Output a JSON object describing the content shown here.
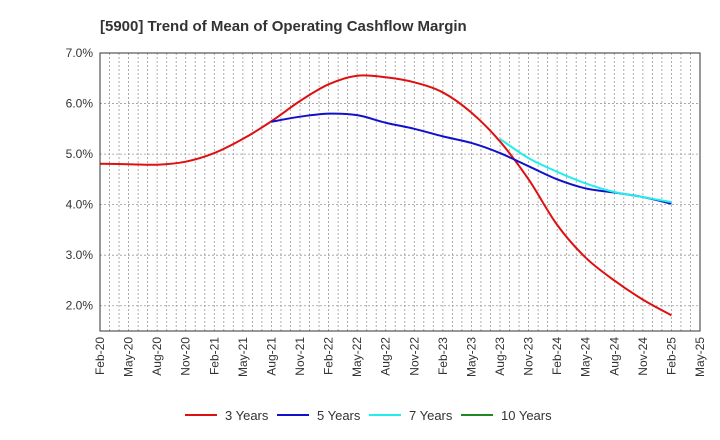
{
  "chart_data": {
    "type": "line",
    "title": "[5900]  Trend of Mean of Operating Cashflow Margin",
    "xlabel": "",
    "ylabel": "",
    "ylim": [
      1.5,
      7.0
    ],
    "y_ticks": [
      "2.0%",
      "3.0%",
      "4.0%",
      "5.0%",
      "6.0%",
      "7.0%"
    ],
    "x_ticks": [
      "Feb-20",
      "May-20",
      "Aug-20",
      "Nov-20",
      "Feb-21",
      "May-21",
      "Aug-21",
      "Nov-21",
      "Feb-22",
      "May-22",
      "Aug-22",
      "Nov-22",
      "Feb-23",
      "May-23",
      "Aug-23",
      "Nov-23",
      "Feb-24",
      "May-24",
      "Aug-24",
      "Nov-24",
      "Feb-25",
      "May-25"
    ],
    "grid": true,
    "legend_position": "bottom",
    "series": [
      {
        "name": "3 Years",
        "color": "#dd1111",
        "points": [
          [
            0,
            4.81
          ],
          [
            1,
            4.8
          ],
          [
            2,
            4.79
          ],
          [
            3,
            4.85
          ],
          [
            4,
            5.02
          ],
          [
            5,
            5.3
          ],
          [
            6,
            5.65
          ],
          [
            7,
            6.05
          ],
          [
            8,
            6.38
          ],
          [
            9,
            6.55
          ],
          [
            10,
            6.52
          ],
          [
            11,
            6.42
          ],
          [
            12,
            6.22
          ],
          [
            13,
            5.82
          ],
          [
            14,
            5.25
          ],
          [
            15,
            4.5
          ],
          [
            16,
            3.6
          ],
          [
            17,
            2.95
          ],
          [
            18,
            2.5
          ],
          [
            19,
            2.12
          ],
          [
            20,
            1.81
          ]
        ]
      },
      {
        "name": "5 Years",
        "color": "#1111cc",
        "points": [
          [
            6,
            5.64
          ],
          [
            7,
            5.74
          ],
          [
            8,
            5.8
          ],
          [
            9,
            5.77
          ],
          [
            10,
            5.62
          ],
          [
            11,
            5.5
          ],
          [
            12,
            5.35
          ],
          [
            13,
            5.22
          ],
          [
            14,
            5.02
          ],
          [
            15,
            4.76
          ],
          [
            16,
            4.5
          ],
          [
            17,
            4.32
          ],
          [
            18,
            4.24
          ],
          [
            19,
            4.15
          ],
          [
            20,
            4.02
          ]
        ]
      },
      {
        "name": "7 Years",
        "color": "#22eeee",
        "points": [
          [
            14,
            5.3
          ],
          [
            15,
            4.92
          ],
          [
            16,
            4.65
          ],
          [
            17,
            4.42
          ],
          [
            18,
            4.25
          ],
          [
            19,
            4.15
          ],
          [
            20,
            4.05
          ]
        ]
      },
      {
        "name": "10 Years",
        "color": "#228822",
        "points": []
      }
    ]
  }
}
